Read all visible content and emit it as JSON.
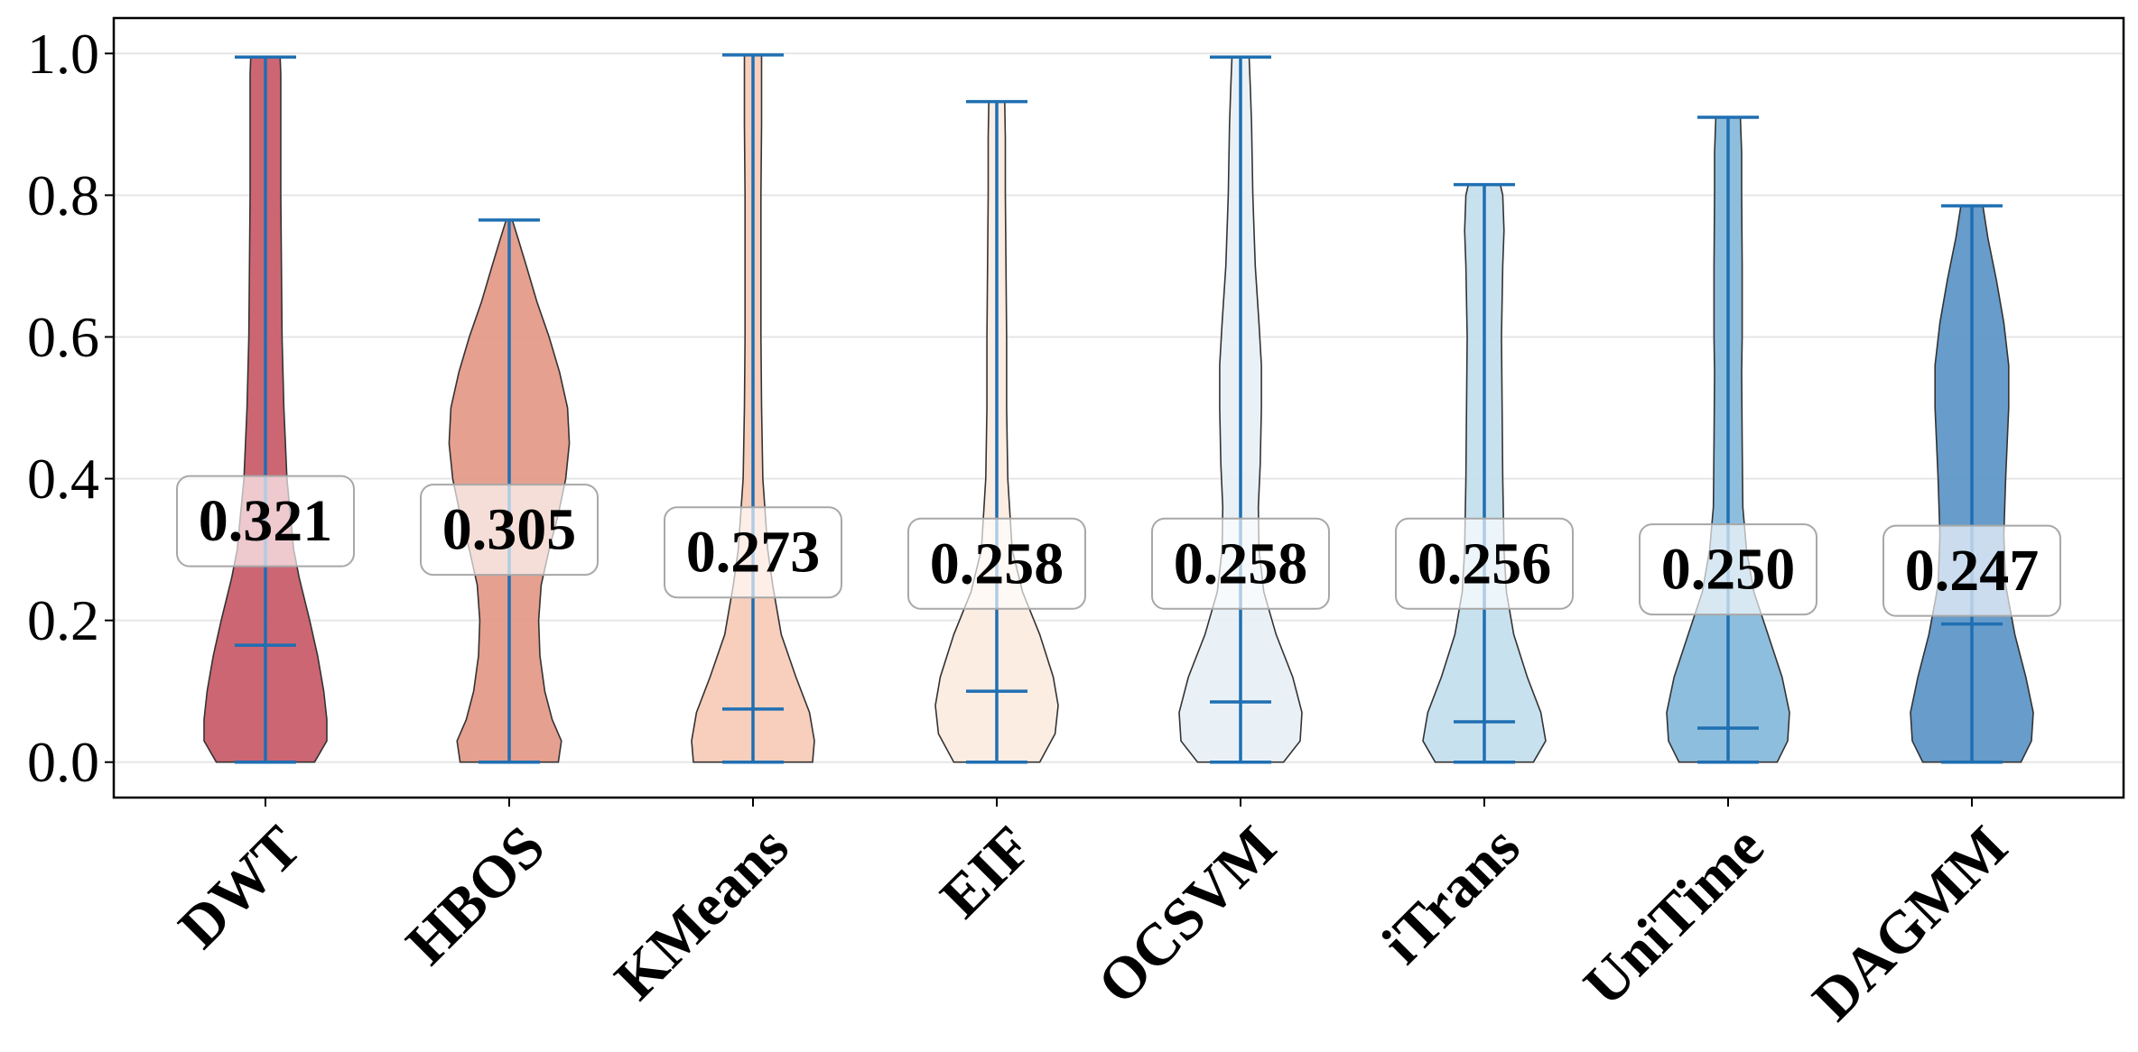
{
  "chart_data": {
    "type": "violin",
    "title": "",
    "xlabel": "",
    "ylabel": "",
    "ylim": [
      -0.05,
      1.05
    ],
    "yticks": [
      0.0,
      0.2,
      0.4,
      0.6,
      0.8,
      1.0
    ],
    "ytick_labels": [
      "0.0",
      "0.2",
      "0.4",
      "0.6",
      "0.8",
      "1.0"
    ],
    "grid": "horizontal",
    "categories": [
      "DWT",
      "HBOS",
      "KMeans",
      "EIF",
      "OCSVM",
      "iTrans",
      "UniTime",
      "DAGMM"
    ],
    "mean_labels": [
      "0.321",
      "0.305",
      "0.273",
      "0.258",
      "0.258",
      "0.256",
      "0.250",
      "0.247"
    ],
    "series": [
      {
        "name": "DWT",
        "color": "#ca5e6c",
        "min": 0.0,
        "max": 0.995,
        "median": 0.165,
        "mean": 0.321,
        "label_y": 0.34,
        "density": [
          [
            0.0,
            0.8
          ],
          [
            0.03,
            1.0
          ],
          [
            0.06,
            1.0
          ],
          [
            0.1,
            0.95
          ],
          [
            0.15,
            0.85
          ],
          [
            0.2,
            0.72
          ],
          [
            0.26,
            0.55
          ],
          [
            0.3,
            0.46
          ],
          [
            0.4,
            0.35
          ],
          [
            0.5,
            0.3
          ],
          [
            0.6,
            0.27
          ],
          [
            0.7,
            0.26
          ],
          [
            0.8,
            0.25
          ],
          [
            0.9,
            0.25
          ],
          [
            0.97,
            0.25
          ],
          [
            0.995,
            0.24
          ]
        ]
      },
      {
        "name": "HBOS",
        "color": "#e49b89",
        "min": 0.0,
        "max": 0.765,
        "median": 0.0,
        "mean": 0.305,
        "label_y": 0.328,
        "density": [
          [
            0.0,
            0.8
          ],
          [
            0.03,
            0.85
          ],
          [
            0.06,
            0.7
          ],
          [
            0.1,
            0.58
          ],
          [
            0.15,
            0.5
          ],
          [
            0.2,
            0.48
          ],
          [
            0.25,
            0.52
          ],
          [
            0.3,
            0.65
          ],
          [
            0.35,
            0.8
          ],
          [
            0.4,
            0.92
          ],
          [
            0.45,
            0.98
          ],
          [
            0.5,
            0.95
          ],
          [
            0.55,
            0.82
          ],
          [
            0.6,
            0.65
          ],
          [
            0.65,
            0.45
          ],
          [
            0.7,
            0.28
          ],
          [
            0.74,
            0.14
          ],
          [
            0.765,
            0.05
          ]
        ]
      },
      {
        "name": "KMeans",
        "color": "#f8ccb8",
        "min": 0.0,
        "max": 0.998,
        "median": 0.075,
        "mean": 0.273,
        "label_y": 0.296,
        "density": [
          [
            0.0,
            0.97
          ],
          [
            0.03,
            1.0
          ],
          [
            0.07,
            0.92
          ],
          [
            0.12,
            0.7
          ],
          [
            0.18,
            0.46
          ],
          [
            0.25,
            0.32
          ],
          [
            0.3,
            0.24
          ],
          [
            0.4,
            0.16
          ],
          [
            0.5,
            0.14
          ],
          [
            0.6,
            0.13
          ],
          [
            0.7,
            0.13
          ],
          [
            0.8,
            0.13
          ],
          [
            0.9,
            0.14
          ],
          [
            0.96,
            0.14
          ],
          [
            0.998,
            0.14
          ]
        ]
      },
      {
        "name": "EIF",
        "color": "#fcece2",
        "min": 0.0,
        "max": 0.932,
        "median": 0.1,
        "mean": 0.258,
        "label_y": 0.28,
        "density": [
          [
            0.0,
            0.7
          ],
          [
            0.04,
            0.95
          ],
          [
            0.08,
            1.0
          ],
          [
            0.12,
            0.92
          ],
          [
            0.18,
            0.7
          ],
          [
            0.24,
            0.42
          ],
          [
            0.3,
            0.25
          ],
          [
            0.4,
            0.18
          ],
          [
            0.5,
            0.16
          ],
          [
            0.6,
            0.16
          ],
          [
            0.7,
            0.15
          ],
          [
            0.8,
            0.14
          ],
          [
            0.88,
            0.14
          ],
          [
            0.932,
            0.13
          ]
        ]
      },
      {
        "name": "OCSVM",
        "color": "#e8f0f6",
        "min": 0.0,
        "max": 0.995,
        "median": 0.085,
        "mean": 0.258,
        "label_y": 0.28,
        "density": [
          [
            0.0,
            0.7
          ],
          [
            0.03,
            0.97
          ],
          [
            0.07,
            1.0
          ],
          [
            0.12,
            0.85
          ],
          [
            0.18,
            0.58
          ],
          [
            0.24,
            0.38
          ],
          [
            0.3,
            0.3
          ],
          [
            0.36,
            0.29
          ],
          [
            0.42,
            0.32
          ],
          [
            0.5,
            0.34
          ],
          [
            0.56,
            0.34
          ],
          [
            0.62,
            0.3
          ],
          [
            0.7,
            0.24
          ],
          [
            0.8,
            0.2
          ],
          [
            0.9,
            0.18
          ],
          [
            0.95,
            0.16
          ],
          [
            0.995,
            0.14
          ]
        ]
      },
      {
        "name": "iTrans",
        "color": "#c5dfee",
        "min": 0.0,
        "max": 0.815,
        "median": 0.057,
        "mean": 0.256,
        "label_y": 0.28,
        "density": [
          [
            0.0,
            0.8
          ],
          [
            0.03,
            1.0
          ],
          [
            0.07,
            0.92
          ],
          [
            0.12,
            0.7
          ],
          [
            0.18,
            0.48
          ],
          [
            0.24,
            0.36
          ],
          [
            0.3,
            0.32
          ],
          [
            0.4,
            0.3
          ],
          [
            0.5,
            0.29
          ],
          [
            0.6,
            0.28
          ],
          [
            0.7,
            0.3
          ],
          [
            0.75,
            0.32
          ],
          [
            0.8,
            0.3
          ],
          [
            0.815,
            0.26
          ]
        ]
      },
      {
        "name": "UniTime",
        "color": "#88bbdb",
        "min": 0.0,
        "max": 0.91,
        "median": 0.048,
        "mean": 0.25,
        "label_y": 0.272,
        "density": [
          [
            0.0,
            0.8
          ],
          [
            0.03,
            0.97
          ],
          [
            0.07,
            1.0
          ],
          [
            0.12,
            0.88
          ],
          [
            0.18,
            0.65
          ],
          [
            0.24,
            0.42
          ],
          [
            0.3,
            0.3
          ],
          [
            0.36,
            0.24
          ],
          [
            0.45,
            0.23
          ],
          [
            0.55,
            0.22
          ],
          [
            0.6,
            0.23
          ],
          [
            0.7,
            0.23
          ],
          [
            0.8,
            0.22
          ],
          [
            0.86,
            0.22
          ],
          [
            0.91,
            0.2
          ]
        ]
      },
      {
        "name": "DAGMM",
        "color": "#5f97c8",
        "min": 0.0,
        "max": 0.785,
        "median": 0.195,
        "mean": 0.247,
        "label_y": 0.27,
        "density": [
          [
            0.0,
            0.8
          ],
          [
            0.03,
            0.97
          ],
          [
            0.07,
            1.0
          ],
          [
            0.12,
            0.88
          ],
          [
            0.18,
            0.7
          ],
          [
            0.25,
            0.55
          ],
          [
            0.32,
            0.52
          ],
          [
            0.4,
            0.55
          ],
          [
            0.5,
            0.6
          ],
          [
            0.56,
            0.6
          ],
          [
            0.62,
            0.52
          ],
          [
            0.68,
            0.4
          ],
          [
            0.74,
            0.26
          ],
          [
            0.785,
            0.18
          ]
        ]
      }
    ]
  }
}
